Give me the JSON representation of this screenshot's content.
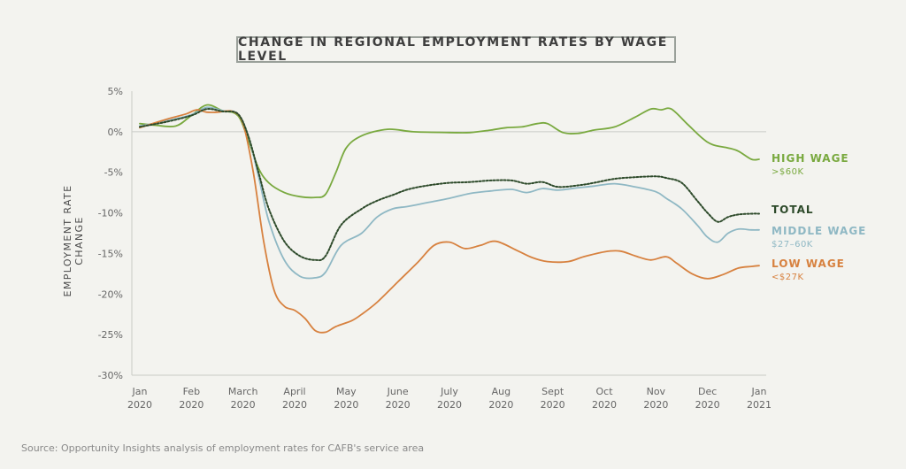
{
  "chart_data": {
    "type": "line",
    "title": "CHANGE IN REGIONAL EMPLOYMENT RATES BY WAGE LEVEL",
    "ylabel": "EMPLOYMENT RATE CHANGE",
    "xlabel": "",
    "ylim": [
      -30,
      5
    ],
    "yticks": [
      5,
      0,
      -5,
      -10,
      -15,
      -20,
      -25,
      -30
    ],
    "ytick_labels": [
      "5%",
      "0%",
      "-5%",
      "-10%",
      "-15%",
      "-20%",
      "-25%",
      "-30%"
    ],
    "xlim": [
      0,
      12
    ],
    "xticks": [
      {
        "month": "Jan",
        "year": "2020"
      },
      {
        "month": "Feb",
        "year": "2020"
      },
      {
        "month": "March",
        "year": "2020"
      },
      {
        "month": "April",
        "year": "2020"
      },
      {
        "month": "May",
        "year": "2020"
      },
      {
        "month": "June",
        "year": "2020"
      },
      {
        "month": "July",
        "year": "2020"
      },
      {
        "month": "Aug",
        "year": "2020"
      },
      {
        "month": "Sept",
        "year": "2020"
      },
      {
        "month": "Oct",
        "year": "2020"
      },
      {
        "month": "Nov",
        "year": "2020"
      },
      {
        "month": "Dec",
        "year": "2020"
      },
      {
        "month": "Jan",
        "year": "2021"
      }
    ],
    "grid": false,
    "legend": "labels at right end of lines",
    "series": [
      {
        "name": "HIGH WAGE",
        "sublabel": ">$60K",
        "color": "#79a93f",
        "dashed": false,
        "x": [
          0,
          0.3,
          0.7,
          1.0,
          1.3,
          1.6,
          1.9,
          2.1,
          2.3,
          2.5,
          2.8,
          3.1,
          3.4,
          3.6,
          3.8,
          4.0,
          4.3,
          4.8,
          5.3,
          6.0,
          6.4,
          6.8,
          7.1,
          7.4,
          7.7,
          7.9,
          8.2,
          8.5,
          8.8,
          9.2,
          9.6,
          9.9,
          10.1,
          10.3,
          10.6,
          10.9,
          11.1,
          11.4,
          11.6,
          11.85,
          12.0
        ],
        "y": [
          1.0,
          0.8,
          0.7,
          2.0,
          3.3,
          2.6,
          2.0,
          -1.0,
          -4.5,
          -6.3,
          -7.5,
          -8.0,
          -8.1,
          -7.7,
          -5.0,
          -2.0,
          -0.5,
          0.3,
          0.0,
          -0.1,
          -0.1,
          0.2,
          0.5,
          0.6,
          1.0,
          1.0,
          -0.1,
          -0.2,
          0.2,
          0.6,
          1.8,
          2.8,
          2.7,
          2.8,
          1.0,
          -0.8,
          -1.6,
          -2.0,
          -2.4,
          -3.4,
          -3.4
        ]
      },
      {
        "name": "TOTAL",
        "sublabel": "",
        "color": "#2d4a2a",
        "dashed": true,
        "x": [
          0,
          0.5,
          1.0,
          1.3,
          1.6,
          1.9,
          2.1,
          2.3,
          2.5,
          2.8,
          3.1,
          3.4,
          3.6,
          3.9,
          4.3,
          4.6,
          4.9,
          5.2,
          5.6,
          6.0,
          6.4,
          6.8,
          7.2,
          7.5,
          7.8,
          8.1,
          8.5,
          8.8,
          9.2,
          9.6,
          10.0,
          10.2,
          10.5,
          10.8,
          11.0,
          11.2,
          11.4,
          11.6,
          11.85,
          12.0
        ],
        "y": [
          0.6,
          1.2,
          2.0,
          2.8,
          2.5,
          2.2,
          -0.5,
          -5.0,
          -9.5,
          -13.5,
          -15.3,
          -15.8,
          -15.3,
          -11.5,
          -9.5,
          -8.5,
          -7.8,
          -7.1,
          -6.6,
          -6.3,
          -6.2,
          -6.0,
          -6.0,
          -6.4,
          -6.2,
          -6.8,
          -6.6,
          -6.3,
          -5.8,
          -5.6,
          -5.5,
          -5.7,
          -6.3,
          -8.5,
          -10.0,
          -11.1,
          -10.5,
          -10.2,
          -10.1,
          -10.1
        ]
      },
      {
        "name": "MIDDLE WAGE",
        "sublabel": "$27–60K",
        "color": "#8fb8c4",
        "dashed": false,
        "x": [
          0,
          0.5,
          1.0,
          1.3,
          1.6,
          1.9,
          2.1,
          2.3,
          2.5,
          2.8,
          3.1,
          3.4,
          3.6,
          3.9,
          4.3,
          4.6,
          4.9,
          5.2,
          5.6,
          6.0,
          6.4,
          6.8,
          7.2,
          7.5,
          7.8,
          8.1,
          8.5,
          8.8,
          9.2,
          9.6,
          10.0,
          10.2,
          10.5,
          10.8,
          11.0,
          11.2,
          11.4,
          11.6,
          11.85,
          12.0
        ],
        "y": [
          0.7,
          1.3,
          2.1,
          3.0,
          2.6,
          2.2,
          -0.5,
          -5.5,
          -11.0,
          -15.8,
          -17.8,
          -18.0,
          -17.3,
          -14.0,
          -12.5,
          -10.5,
          -9.5,
          -9.2,
          -8.7,
          -8.2,
          -7.6,
          -7.3,
          -7.1,
          -7.5,
          -7.0,
          -7.2,
          -6.9,
          -6.7,
          -6.4,
          -6.8,
          -7.4,
          -8.2,
          -9.5,
          -11.5,
          -13.0,
          -13.6,
          -12.5,
          -12.0,
          -12.1,
          -12.1
        ]
      },
      {
        "name": "LOW WAGE",
        "sublabel": "<$27K",
        "color": "#d7813f",
        "dashed": false,
        "x": [
          0,
          0.5,
          0.9,
          1.1,
          1.3,
          1.5,
          1.8,
          2.0,
          2.2,
          2.4,
          2.6,
          2.8,
          3.0,
          3.2,
          3.4,
          3.6,
          3.8,
          4.1,
          4.3,
          4.6,
          5.0,
          5.4,
          5.7,
          6.0,
          6.3,
          6.6,
          6.9,
          7.3,
          7.6,
          7.9,
          8.3,
          8.6,
          9.0,
          9.3,
          9.6,
          9.9,
          10.2,
          10.4,
          10.7,
          11.0,
          11.3,
          11.6,
          11.85,
          12.0
        ],
        "y": [
          0.5,
          1.5,
          2.2,
          2.7,
          2.4,
          2.4,
          2.5,
          1.0,
          -5.0,
          -13.5,
          -19.5,
          -21.5,
          -22.0,
          -23.0,
          -24.5,
          -24.7,
          -24.0,
          -23.3,
          -22.5,
          -21.0,
          -18.5,
          -16.0,
          -14.0,
          -13.6,
          -14.4,
          -14.0,
          -13.5,
          -14.6,
          -15.5,
          -16.0,
          -16.0,
          -15.4,
          -14.8,
          -14.7,
          -15.3,
          -15.8,
          -15.4,
          -16.2,
          -17.5,
          -18.1,
          -17.6,
          -16.8,
          -16.6,
          -16.5
        ]
      }
    ]
  },
  "source": "Source: Opportunity Insights analysis of employment rates for CAFB's service area"
}
